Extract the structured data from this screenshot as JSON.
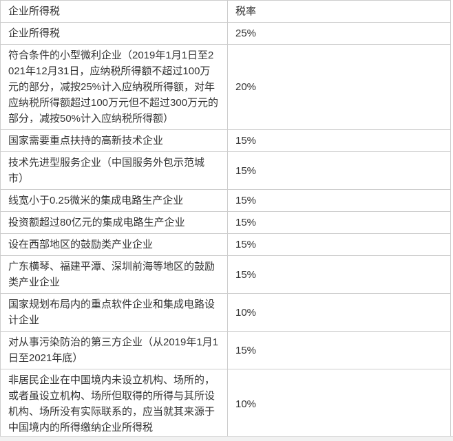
{
  "page": {
    "background_color": "#ffffff",
    "text_color": "#333333",
    "table_border_color": "#cccccc",
    "below_strip_color": "#f1f1f1"
  },
  "table": {
    "headers": {
      "category": "企业所得税",
      "rate": "税率"
    },
    "rows": [
      {
        "category": "企业所得税",
        "rate": "25%"
      },
      {
        "category": "符合条件的小型微利企业（2019年1月1日至2021年12月31日，应纳税所得额不超过100万元的部分，减按25%计入应纳税所得额，对年应纳税所得额超过100万元但不超过300万元的部分，减按50%计入应纳税所得额）",
        "rate": "20%"
      },
      {
        "category": "国家需要重点扶持的高新技术企业",
        "rate": "15%"
      },
      {
        "category": "技术先进型服务企业（中国服务外包示范城市）",
        "rate": "15%"
      },
      {
        "category": "线宽小于0.25微米的集成电路生产企业",
        "rate": "15%"
      },
      {
        "category": "投资额超过80亿元的集成电路生产企业",
        "rate": "15%"
      },
      {
        "category": "设在西部地区的鼓励类产业企业",
        "rate": "15%"
      },
      {
        "category": "广东横琴、福建平潭、深圳前海等地区的鼓励类产业企业",
        "rate": "15%"
      },
      {
        "category": "国家规划布局内的重点软件企业和集成电路设计企业",
        "rate": "10%"
      },
      {
        "category": "对从事污染防治的第三方企业（从2019年1月1日至2021年底）",
        "rate": "15%"
      },
      {
        "category": "非居民企业在中国境内未设立机构、场所的，或者虽设立机构、场所但取得的所得与其所设机构、场所没有实际联系的，应当就其来源于中国境内的所得缴纳企业所得税",
        "rate": "10%"
      }
    ]
  }
}
